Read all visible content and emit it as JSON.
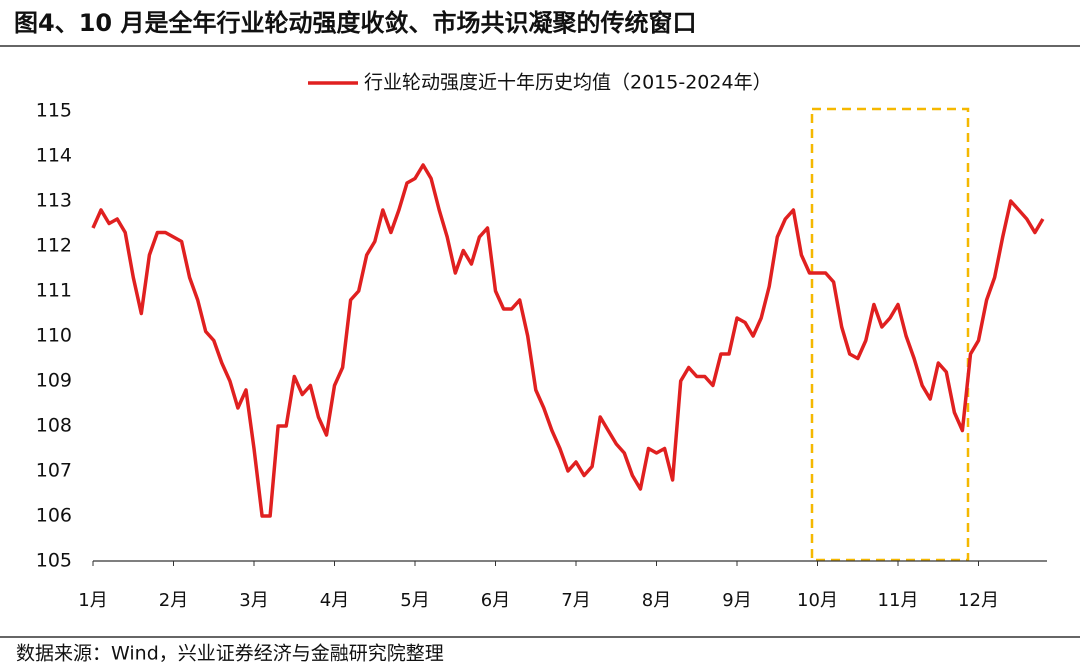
{
  "title": "图4、10 月是全年行业轮动强度收敛、市场共识凝聚的传统窗口",
  "source": "数据来源：Wind，兴业证券经济与金融研究院整理",
  "chart_data": {
    "type": "line",
    "categories": [
      "1月",
      null,
      null,
      null,
      null,
      null,
      null,
      null,
      null,
      null,
      "2月",
      null,
      null,
      null,
      null,
      null,
      null,
      null,
      null,
      null,
      "3月",
      null,
      null,
      null,
      null,
      null,
      null,
      null,
      null,
      null,
      "4月",
      null,
      null,
      null,
      null,
      null,
      null,
      null,
      null,
      null,
      "5月",
      null,
      null,
      null,
      null,
      null,
      null,
      null,
      null,
      null,
      "6月",
      null,
      null,
      null,
      null,
      null,
      null,
      null,
      null,
      null,
      "7月",
      null,
      null,
      null,
      null,
      null,
      null,
      null,
      null,
      null,
      "8月",
      null,
      null,
      null,
      null,
      null,
      null,
      null,
      null,
      null,
      "9月",
      null,
      null,
      null,
      null,
      null,
      null,
      null,
      null,
      null,
      "10月",
      null,
      null,
      null,
      null,
      null,
      null,
      null,
      null,
      null,
      "11月",
      null,
      null,
      null,
      null,
      null,
      null,
      null,
      null,
      null,
      "12月",
      null,
      null,
      null,
      null,
      null,
      null,
      null,
      null
    ],
    "series": [
      {
        "name": "行业轮动强度近十年历史均值（2015-2024年）",
        "color": "#e02020",
        "values": [
          112.4,
          112.8,
          112.5,
          112.6,
          112.3,
          111.3,
          110.5,
          111.8,
          112.3,
          112.3,
          112.2,
          112.1,
          111.3,
          110.8,
          110.1,
          109.9,
          109.4,
          109.0,
          108.4,
          108.8,
          107.5,
          106.0,
          106.0,
          108.0,
          108.0,
          109.1,
          108.7,
          108.9,
          108.2,
          107.8,
          108.9,
          109.3,
          110.8,
          111.0,
          111.8,
          112.1,
          112.8,
          112.3,
          112.8,
          113.4,
          113.5,
          113.8,
          113.5,
          112.8,
          112.2,
          111.4,
          111.9,
          111.6,
          112.2,
          112.4,
          111.0,
          110.6,
          110.6,
          110.8,
          110.0,
          108.8,
          108.4,
          107.9,
          107.5,
          107.0,
          107.2,
          106.9,
          107.1,
          108.2,
          107.9,
          107.6,
          107.4,
          106.9,
          106.6,
          107.5,
          107.4,
          107.5,
          106.8,
          109.0,
          109.3,
          109.1,
          109.1,
          108.9,
          109.6,
          109.6,
          110.4,
          110.3,
          110.0,
          110.4,
          111.1,
          112.2,
          112.6,
          112.8,
          111.8,
          111.4,
          111.4,
          111.4,
          111.2,
          110.2,
          109.6,
          109.5,
          109.9,
          110.7,
          110.2,
          110.4,
          110.7,
          110.0,
          109.5,
          108.9,
          108.6,
          109.4,
          109.2,
          108.3,
          107.9,
          109.6,
          109.9,
          110.8,
          111.3,
          112.2,
          113.0,
          112.8,
          112.6,
          112.3,
          112.6
        ]
      }
    ],
    "ylim": [
      105,
      115
    ],
    "yticks": [
      105,
      106,
      107,
      108,
      109,
      110,
      111,
      112,
      113,
      114,
      115
    ],
    "legend": "top",
    "grid": false
  }
}
